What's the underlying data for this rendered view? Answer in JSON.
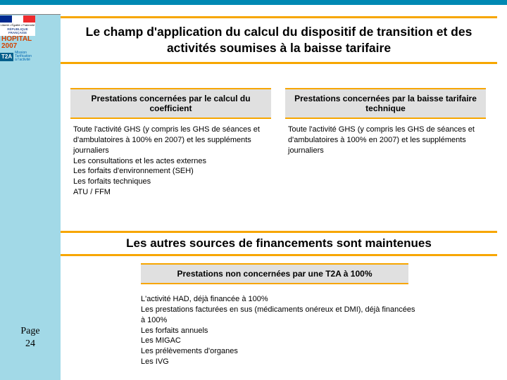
{
  "colors": {
    "accent_orange": "#f7a600",
    "sidebar_blue": "#a2d9e7",
    "topbar_teal": "#0089b3",
    "header_grey": "#e0e0e0",
    "hopital_orange": "#d44200",
    "badge_blue": "#005f8c"
  },
  "logo": {
    "motto": "Liberté • Égalité • Fraternité",
    "republic": "RÉPUBLIQUE FRANÇAISE",
    "hopital_line1": "HOPITAL",
    "hopital_line2": "2007",
    "t2a_badge": "T2A",
    "t2a_line1": "Mission Tarification",
    "t2a_line2": "à l'activité"
  },
  "title": "Le champ d'application du calcul du dispositif de transition et des activités soumises à la baisse tarifaire",
  "table": {
    "headers": {
      "left": "Prestations concernées par le calcul du coefficient",
      "right": "Prestations concernées par la baisse tarifaire technique"
    },
    "body": {
      "left": "Toute l'activité GHS (y compris les GHS de séances et d'ambulatoires à 100% en 2007) et les suppléments journaliers\nLes consultations et les actes externes\nLes forfaits d'environnement (SEH)\nLes forfaits techniques\nATU / FFM",
      "right": "Toute l'activité GHS (y compris les GHS de séances et d'ambulatoires à 100% en 2007) et les suppléments journaliers"
    }
  },
  "subtitle": "Les autres sources de financements sont maintenues",
  "box3": {
    "header": "Prestations non concernées par une T2A à 100%",
    "body": "L'activité HAD, déjà financée à 100%\nLes prestations facturées en sus (médicaments onéreux et DMI), déjà financées à 100%\nLes forfaits annuels\nLes MIGAC\nLes prélèvements d'organes\nLes IVG"
  },
  "page": {
    "label": "Page",
    "number": "24"
  }
}
